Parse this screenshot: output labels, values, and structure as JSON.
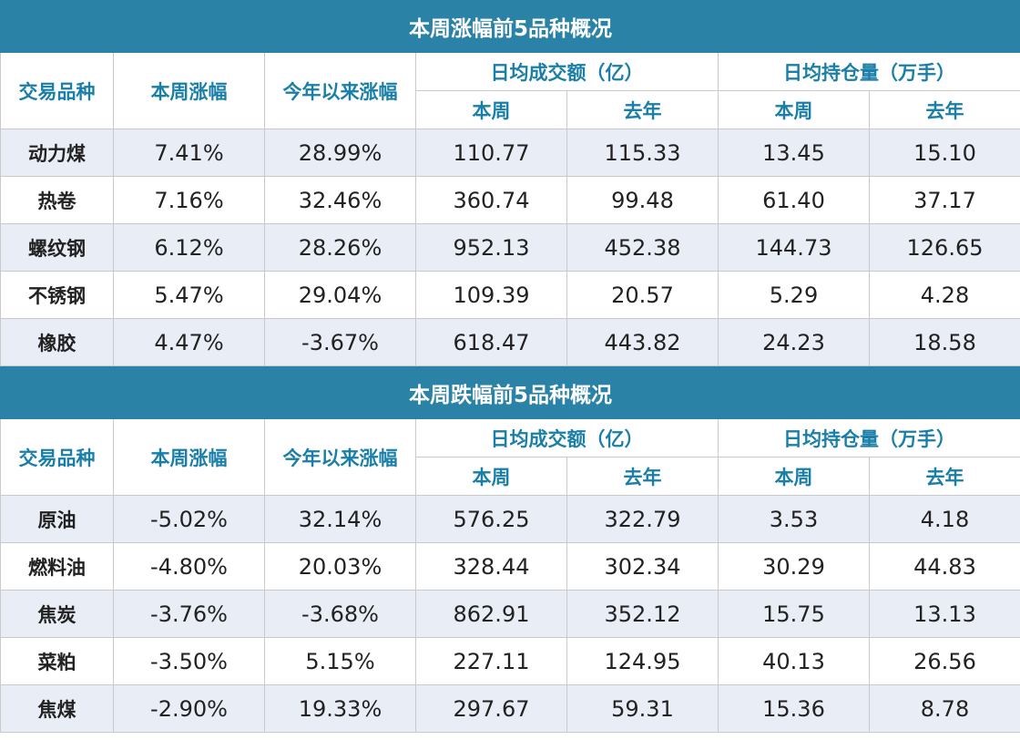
{
  "headers": {
    "variety": "交易品种",
    "week_change": "本周涨幅",
    "ytd_change": "今年以来涨幅",
    "avg_volume": "日均成交额（亿）",
    "avg_open_interest": "日均持仓量（万手）",
    "this_week": "本周",
    "last_year": "去年"
  },
  "gainers": {
    "title": "本周涨幅前5品种概况",
    "rows": [
      {
        "name": "动力煤",
        "week": "7.41%",
        "ytd": "28.99%",
        "vol_week": "110.77",
        "vol_last": "115.33",
        "oi_week": "13.45",
        "oi_last": "15.10"
      },
      {
        "name": "热卷",
        "week": "7.16%",
        "ytd": "32.46%",
        "vol_week": "360.74",
        "vol_last": "99.48",
        "oi_week": "61.40",
        "oi_last": "37.17"
      },
      {
        "name": "螺纹钢",
        "week": "6.12%",
        "ytd": "28.26%",
        "vol_week": "952.13",
        "vol_last": "452.38",
        "oi_week": "144.73",
        "oi_last": "126.65"
      },
      {
        "name": "不锈钢",
        "week": "5.47%",
        "ytd": "29.04%",
        "vol_week": "109.39",
        "vol_last": "20.57",
        "oi_week": "5.29",
        "oi_last": "4.28"
      },
      {
        "name": "橡胶",
        "week": "4.47%",
        "ytd": "-3.67%",
        "vol_week": "618.47",
        "vol_last": "443.82",
        "oi_week": "24.23",
        "oi_last": "18.58"
      }
    ]
  },
  "losers": {
    "title": "本周跌幅前5品种概况",
    "rows": [
      {
        "name": "原油",
        "week": "-5.02%",
        "ytd": "32.14%",
        "vol_week": "576.25",
        "vol_last": "322.79",
        "oi_week": "3.53",
        "oi_last": "4.18"
      },
      {
        "name": "燃料油",
        "week": "-4.80%",
        "ytd": "20.03%",
        "vol_week": "328.44",
        "vol_last": "302.34",
        "oi_week": "30.29",
        "oi_last": "44.83"
      },
      {
        "name": "焦炭",
        "week": "-3.76%",
        "ytd": "-3.68%",
        "vol_week": "862.91",
        "vol_last": "352.12",
        "oi_week": "15.75",
        "oi_last": "13.13"
      },
      {
        "name": "菜粕",
        "week": "-3.50%",
        "ytd": "5.15%",
        "vol_week": "227.11",
        "vol_last": "124.95",
        "oi_week": "40.13",
        "oi_last": "26.56"
      },
      {
        "name": "焦煤",
        "week": "-2.90%",
        "ytd": "19.33%",
        "vol_week": "297.67",
        "vol_last": "59.31",
        "oi_week": "15.36",
        "oi_last": "8.78"
      }
    ]
  }
}
